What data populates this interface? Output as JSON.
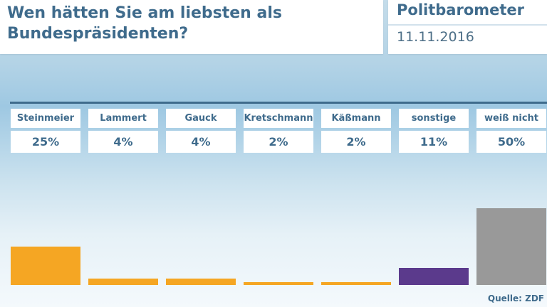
{
  "header": {
    "title": "Wen hätten Sie am liebsten als Bundespräsidenten?",
    "brand": "Politbarometer",
    "date": "11.11.2016"
  },
  "source": "Quelle: ZDF",
  "chart_data": {
    "type": "bar",
    "categories": [
      "Steinmeier",
      "Lammert",
      "Gauck",
      "Kretschmann",
      "Käßmann",
      "sonstige",
      "weiß nicht"
    ],
    "values": [
      25,
      4,
      4,
      2,
      2,
      11,
      50
    ],
    "value_labels": [
      "25%",
      "4%",
      "4%",
      "2%",
      "2%",
      "11%",
      "50%"
    ],
    "unit": "%",
    "title": "Wen hätten Sie am liebsten als Bundespräsidenten?",
    "xlabel": "",
    "ylabel": "",
    "ylim": [
      0,
      50
    ],
    "grid": false,
    "colors": [
      "#f5a623",
      "#f5a623",
      "#f5a623",
      "#f5a623",
      "#f5a623",
      "#5b3a8c",
      "#999999"
    ]
  }
}
